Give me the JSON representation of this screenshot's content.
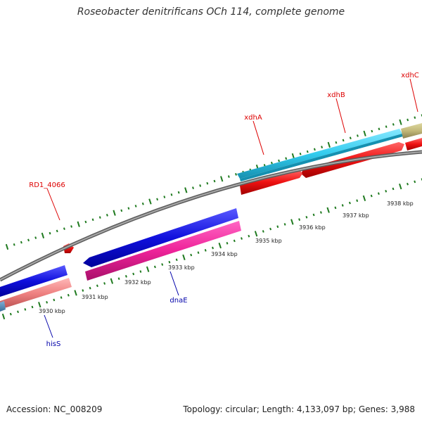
{
  "title": "Roseobacter denitrificans OCh 114, complete genome",
  "footer": {
    "accession": "Accession: NC_008209",
    "summary": "Topology: circular; Length: 4,133,097 bp; Genes: 3,988"
  },
  "colors": {
    "background": "#ffffff",
    "backbone": "#8c8c8c",
    "ticks": "#1f7a1f",
    "forward_label": "#dd0000",
    "reverse_label": "#0000aa"
  },
  "tick_labels": [
    "3930 kbp",
    "3931 kbp",
    "3932 kbp",
    "3933 kbp",
    "3934 kbp",
    "3935 kbp",
    "3936 kbp",
    "3937 kbp",
    "3938 kbp"
  ],
  "genes": {
    "forward": [
      {
        "label": "xdhA",
        "color": "#33ccee"
      },
      {
        "label": "xdhB",
        "color": "#ee1111"
      },
      {
        "label": "xdhC",
        "color": "#ee1111"
      },
      {
        "label": "RD1_4066",
        "color": "#ee1111"
      }
    ],
    "reverse": [
      {
        "label": "dnaE",
        "color": "#ee2299"
      },
      {
        "label": "hisS",
        "color": "#ee8080"
      }
    ]
  }
}
